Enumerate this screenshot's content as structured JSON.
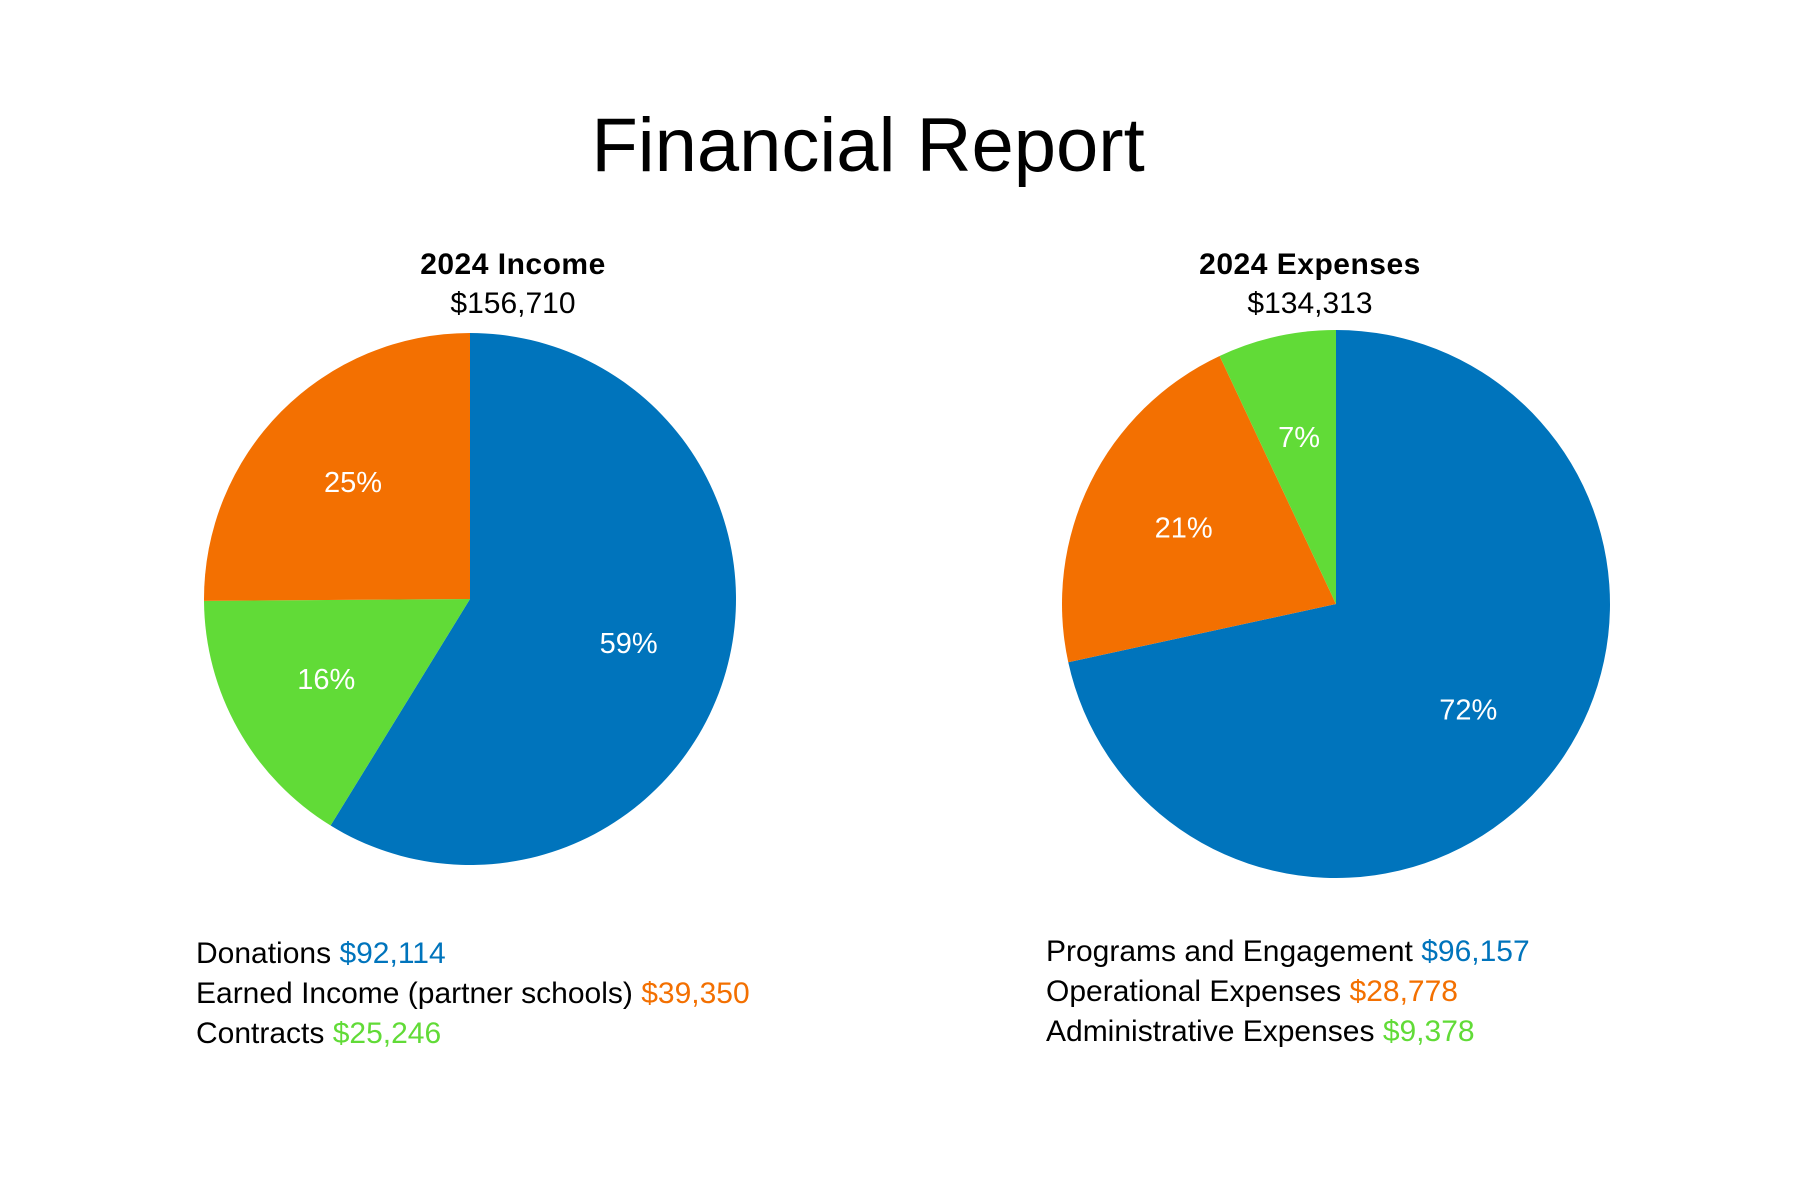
{
  "page": {
    "title": "Financial Report"
  },
  "colors": {
    "blue": "#0074BC",
    "orange": "#F37001",
    "green": "#61DB37"
  },
  "chart_data": [
    {
      "type": "pie",
      "title": "2024 Income",
      "subtitle": "$156,710",
      "start": "top",
      "direction": "clockwise",
      "slices": [
        {
          "label": "Donations",
          "value": 92114,
          "display_value": "$92,114",
          "percent_label": "59%",
          "color": "#0074BC"
        },
        {
          "label": "Contracts",
          "value": 25246,
          "display_value": "$25,246",
          "percent_label": "16%",
          "color": "#61DB37"
        },
        {
          "label": "Earned Income (partner schools)",
          "value": 39350,
          "display_value": "$39,350",
          "percent_label": "25%",
          "color": "#F37001"
        }
      ],
      "legend": [
        {
          "label": "Donations",
          "display_value": "$92,114",
          "color": "#0074BC"
        },
        {
          "label": "Earned Income (partner schools)",
          "display_value": "$39,350",
          "color": "#F37001"
        },
        {
          "label": "Contracts",
          "display_value": "$25,246",
          "color": "#61DB37"
        }
      ],
      "legend_placement": "bottom"
    },
    {
      "type": "pie",
      "title": "2024 Expenses",
      "subtitle": "$134,313",
      "start": "top",
      "direction": "clockwise",
      "slices": [
        {
          "label": "Programs and Engagement",
          "value": 96157,
          "display_value": "$96,157",
          "percent_label": "72%",
          "color": "#0074BC"
        },
        {
          "label": "Operational Expenses",
          "value": 28778,
          "display_value": "$28,778",
          "percent_label": "21%",
          "color": "#F37001"
        },
        {
          "label": "Administrative Expenses",
          "value": 9378,
          "display_value": "$9,378",
          "percent_label": "7%",
          "color": "#61DB37"
        }
      ],
      "legend": [
        {
          "label": "Programs and Engagement",
          "display_value": "$96,157",
          "color": "#0074BC"
        },
        {
          "label": "Operational Expenses",
          "display_value": "$28,778",
          "color": "#F37001"
        },
        {
          "label": "Administrative Expenses",
          "display_value": "$9,378",
          "color": "#61DB37"
        }
      ],
      "legend_placement": "bottom"
    }
  ]
}
